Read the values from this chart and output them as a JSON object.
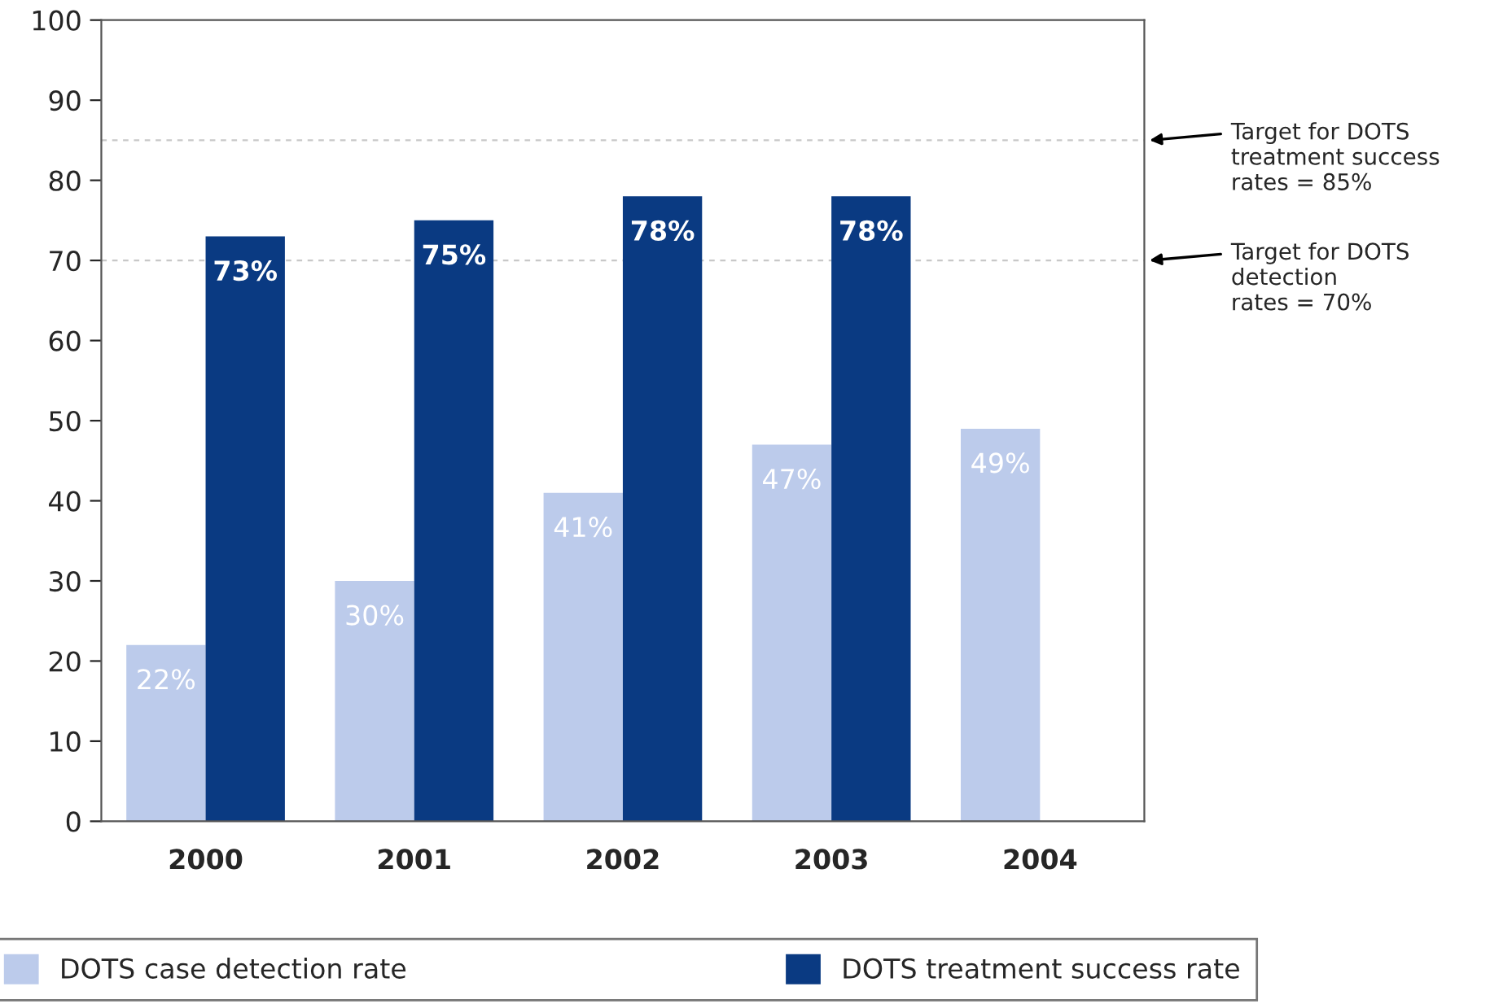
{
  "chart_data": {
    "type": "bar",
    "categories": [
      "2000",
      "2001",
      "2002",
      "2003",
      "2004"
    ],
    "series": [
      {
        "name": "DOTS case detection rate",
        "color": "#bccbeb",
        "values": [
          22,
          30,
          41,
          47,
          49
        ],
        "value_labels": [
          "22%",
          "30%",
          "41%",
          "47%",
          "49%"
        ]
      },
      {
        "name": "DOTS treatment success rate",
        "color": "#0a3a82",
        "values": [
          73,
          75,
          78,
          78,
          null
        ],
        "value_labels": [
          "73%",
          "75%",
          "78%",
          "78%",
          null
        ]
      }
    ],
    "ylim": [
      0,
      100
    ],
    "yticks": [
      0,
      10,
      20,
      30,
      40,
      50,
      60,
      70,
      80,
      90,
      100
    ],
    "ref_lines": [
      {
        "axis": "y",
        "value": 85,
        "label": "Target for DOTS\ntreatment success\nrates = 85%",
        "color": "#c8c8c8",
        "line_style": "dashed"
      },
      {
        "axis": "y",
        "value": 70,
        "label": "Target for DOTS\ndetection\nrates = 70%",
        "color": "#c8c8c8",
        "line_style": "dashed"
      }
    ],
    "grid": false,
    "legend": "bottom"
  }
}
